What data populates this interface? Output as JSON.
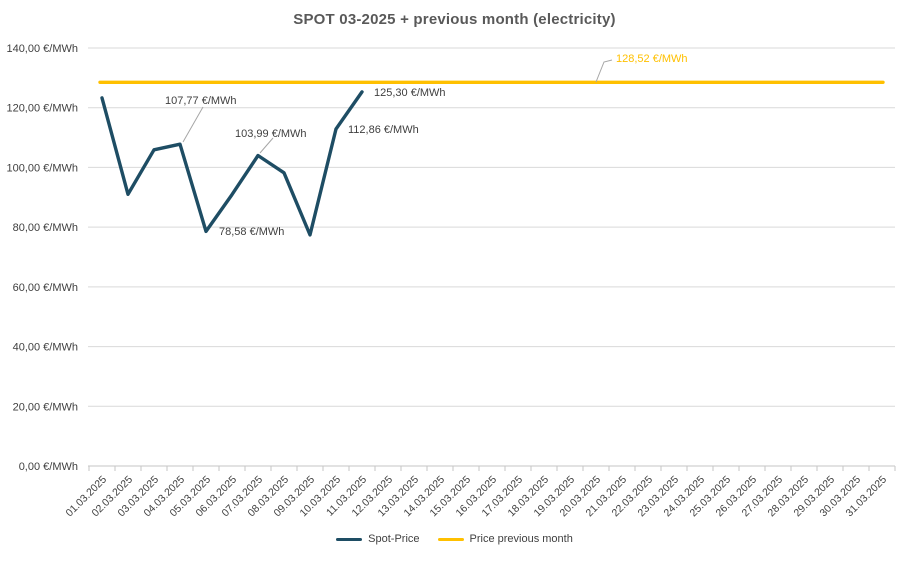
{
  "title": "SPOT 03-2025 + previous month (electricity)",
  "legend": {
    "items": [
      {
        "label": "Spot-Price",
        "color": "#1E4D64"
      },
      {
        "label": "Price previous month",
        "color": "#FFC000"
      }
    ]
  },
  "colors": {
    "spot_line": "#1E4D64",
    "previous_month_line": "#FFC000",
    "gridline": "#D9D9D9",
    "axis": "#C6C6C6",
    "axis_text": "#404040",
    "title_text": "#595959",
    "leader_line": "#A6A6A6"
  },
  "chart_data": {
    "type": "line",
    "title": "SPOT 03-2025 + previous month (electricity)",
    "xlabel": "",
    "ylabel": "",
    "ylim": [
      0,
      140
    ],
    "grid": "horizontal",
    "legend_position": "bottom",
    "y_ticks": [
      "0,00 €/MWh",
      "20,00 €/MWh",
      "40,00 €/MWh",
      "60,00 €/MWh",
      "80,00 €/MWh",
      "100,00 €/MWh",
      "120,00 €/MWh",
      "140,00 €/MWh"
    ],
    "categories": [
      "01.03.2025",
      "02.03.2025",
      "03.03.2025",
      "04.03.2025",
      "05.03.2025",
      "06.03.2025",
      "07.03.2025",
      "08.03.2025",
      "09.03.2025",
      "10.03.2025",
      "11.03.2025",
      "12.03.2025",
      "13.03.2025",
      "14.03.2025",
      "15.03.2025",
      "16.03.2025",
      "17.03.2025",
      "18.03.2025",
      "19.03.2025",
      "20.03.2025",
      "21.03.2025",
      "22.03.2025",
      "23.03.2025",
      "24.03.2025",
      "25.03.2025",
      "26.03.2025",
      "27.03.2025",
      "28.03.2025",
      "29.03.2025",
      "30.03.2025",
      "31.03.2025"
    ],
    "series": [
      {
        "name": "Spot-Price",
        "color": "#1E4D64",
        "values": [
          123.3,
          91.0,
          105.9,
          107.77,
          78.58,
          90.9,
          103.99,
          98.2,
          77.4,
          112.86,
          125.3,
          null,
          null,
          null,
          null,
          null,
          null,
          null,
          null,
          null,
          null,
          null,
          null,
          null,
          null,
          null,
          null,
          null,
          null,
          null,
          null
        ]
      },
      {
        "name": "Price previous month",
        "color": "#FFC000",
        "constant_value": 128.52
      }
    ],
    "annotations": [
      {
        "id": "ann-107",
        "text": "107,77 €/MWh",
        "category": "04.03.2025",
        "value": 107.77,
        "color": "#404040"
      },
      {
        "id": "ann-103",
        "text": "103,99 €/MWh",
        "category": "07.03.2025",
        "value": 103.99,
        "color": "#404040"
      },
      {
        "id": "ann-78",
        "text": "78,58 €/MWh",
        "category": "05.03.2025",
        "value": 78.58,
        "color": "#404040"
      },
      {
        "id": "ann-125",
        "text": "125,30 €/MWh",
        "category": "11.03.2025",
        "value": 125.3,
        "color": "#404040"
      },
      {
        "id": "ann-112",
        "text": "112,86 €/MWh",
        "category": "10.03.2025",
        "value": 112.86,
        "color": "#404040"
      },
      {
        "id": "ann-128",
        "text": "128,52 €/MWh",
        "series": "Price previous month",
        "value": 128.52,
        "color": "#FFC000"
      }
    ]
  }
}
